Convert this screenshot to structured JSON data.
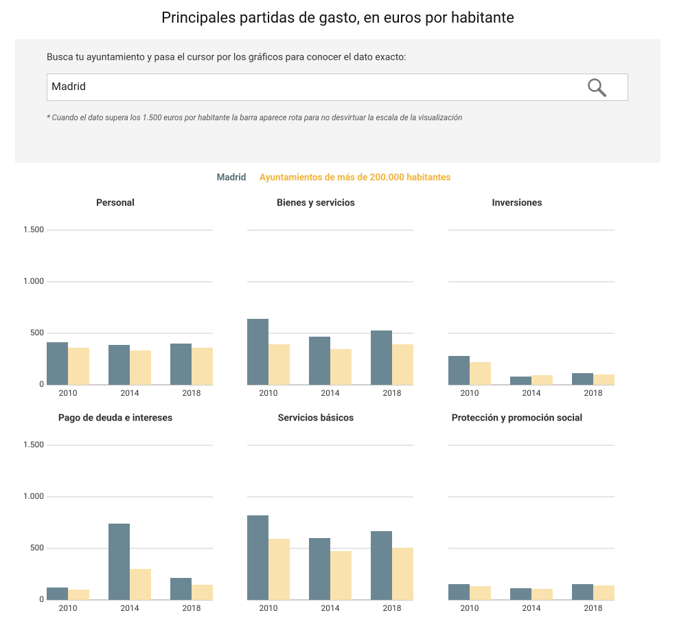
{
  "title": "Principales partidas de gasto, en euros por habitante",
  "search": {
    "prompt": "Busca tu ayuntamiento y pasa el cursor por los gráficos para conocer el dato exacto:",
    "value": "Madrid",
    "note": "* Cuando el dato supera los 1.500 euros por habitante la barra aparece rota para no desvirtuar la escala de la visualización"
  },
  "chart_data": [
    {
      "type": "bar",
      "title": "Personal",
      "categories": [
        "2010",
        "2014",
        "2018"
      ],
      "series": [
        {
          "name": "Madrid",
          "color": "#6b8793",
          "values": [
            413,
            387,
            400
          ]
        },
        {
          "name": "Ayuntamientos de más de 200.000 habitantes",
          "color": "#f9e2ad",
          "values": [
            360,
            333,
            360
          ]
        }
      ],
      "ylim": [
        0,
        1500
      ],
      "yticks": [
        0,
        500,
        {
          "value": 1000,
          "label": "1.000"
        },
        {
          "value": 1500,
          "label": "1.500"
        }
      ],
      "grid": true
    },
    {
      "type": "bar",
      "title": "Bienes y servicios",
      "categories": [
        "2010",
        "2014",
        "2018"
      ],
      "series": [
        {
          "name": "Madrid",
          "color": "#6b8793",
          "values": [
            640,
            467,
            527
          ]
        },
        {
          "name": "Ayuntamientos de más de 200.000 habitantes",
          "color": "#f9e2ad",
          "values": [
            393,
            347,
            393
          ]
        }
      ],
      "ylim": [
        0,
        1500
      ],
      "yticks": [
        0,
        500,
        1000,
        1500
      ],
      "grid": true
    },
    {
      "type": "bar",
      "title": "Inversiones",
      "categories": [
        "2010",
        "2014",
        "2018"
      ],
      "series": [
        {
          "name": "Madrid",
          "color": "#6b8793",
          "values": [
            280,
            80,
            113
          ]
        },
        {
          "name": "Ayuntamientos de más de 200.000 habitantes",
          "color": "#f9e2ad",
          "values": [
            220,
            93,
            100
          ]
        }
      ],
      "ylim": [
        0,
        1500
      ],
      "yticks": [
        0,
        500,
        1000,
        1500
      ],
      "grid": true
    },
    {
      "type": "bar",
      "title": "Pago de deuda e intereses",
      "categories": [
        "2010",
        "2014",
        "2018"
      ],
      "series": [
        {
          "name": "Madrid",
          "color": "#6b8793",
          "values": [
            120,
            740,
            213
          ]
        },
        {
          "name": "Ayuntamientos de más de 200.000 habitantes",
          "color": "#f9e2ad",
          "values": [
            100,
            300,
            147
          ]
        }
      ],
      "ylim": [
        0,
        1500
      ],
      "yticks": [
        0,
        500,
        {
          "value": 1000,
          "label": "1.000"
        },
        {
          "value": 1500,
          "label": "1.500"
        }
      ],
      "grid": true
    },
    {
      "type": "bar",
      "title": "Servicios básicos",
      "categories": [
        "2010",
        "2014",
        "2018"
      ],
      "series": [
        {
          "name": "Madrid",
          "color": "#6b8793",
          "values": [
            820,
            600,
            667
          ]
        },
        {
          "name": "Ayuntamientos de más de 200.000 habitantes",
          "color": "#f9e2ad",
          "values": [
            593,
            473,
            507
          ]
        }
      ],
      "ylim": [
        0,
        1500
      ],
      "yticks": [
        0,
        500,
        1000,
        1500
      ],
      "grid": true
    },
    {
      "type": "bar",
      "title": "Protección y promoción social",
      "categories": [
        "2010",
        "2014",
        "2018"
      ],
      "series": [
        {
          "name": "Madrid",
          "color": "#6b8793",
          "values": [
            153,
            113,
            153
          ]
        },
        {
          "name": "Ayuntamientos de más de 200.000 habitantes",
          "color": "#f9e2ad",
          "values": [
            133,
            107,
            140
          ]
        }
      ],
      "ylim": [
        0,
        1500
      ],
      "yticks": [
        0,
        500,
        1000,
        1500
      ],
      "grid": true
    }
  ]
}
